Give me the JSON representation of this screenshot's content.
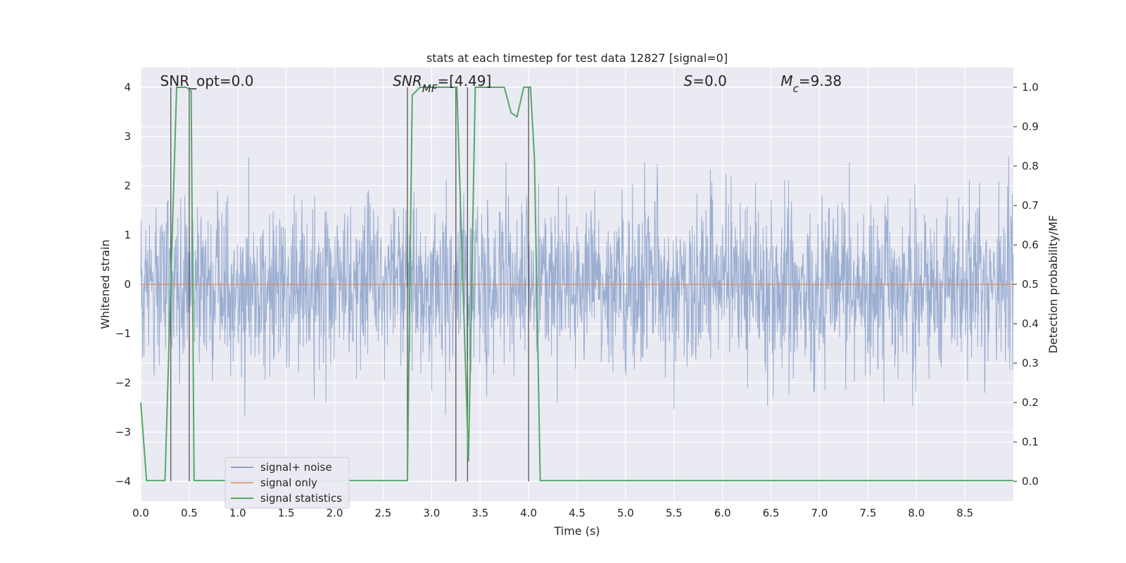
{
  "chart_data": {
    "type": "line",
    "title": "stats at each timestep for test data 12827 [signal=0]",
    "xlabel": "Time (s)",
    "ylabel": "Whitened strain",
    "y2label": "Detection probability/MF",
    "xlim": [
      0.0,
      9.0
    ],
    "ylim": [
      -4.4,
      4.4
    ],
    "y2lim": [
      -0.05,
      1.05
    ],
    "grid": true,
    "x_ticks": [
      "0.0",
      "0.5",
      "1.0",
      "1.5",
      "2.0",
      "2.5",
      "3.0",
      "3.5",
      "4.0",
      "4.5",
      "5.0",
      "5.5",
      "6.0",
      "6.5",
      "7.0",
      "7.5",
      "8.0",
      "8.5"
    ],
    "y_ticks": [
      "4",
      "3",
      "2",
      "1",
      "0",
      "−1",
      "−2",
      "−3",
      "−4"
    ],
    "y2_ticks": [
      "1.0",
      "0.9",
      "0.8",
      "0.7",
      "0.6",
      "0.5",
      "0.4",
      "0.3",
      "0.2",
      "0.1",
      "0.0"
    ],
    "annotations": [
      {
        "text": "SNR_opt=0.0",
        "x": 0.2
      },
      {
        "text": "SNR_MF=[4.49]",
        "x": 2.6
      },
      {
        "text": "S=0.0",
        "x": 5.6
      },
      {
        "text": "M_c=9.38",
        "x": 6.6
      }
    ],
    "legend": {
      "location": "lower left",
      "entries": [
        "signal+ noise",
        "signal only",
        "signal statistics"
      ]
    },
    "series": [
      {
        "name": "signal+ noise",
        "color": "#4c72b0",
        "style": "dense noise, approx. gaussian, sigma ≈ 0.85",
        "envelope": {
          "max_abs": 4.0
        }
      },
      {
        "name": "signal only",
        "color": "#dd8452",
        "x": [
          0.0,
          9.0
        ],
        "y": [
          0.0,
          0.0
        ]
      },
      {
        "name": "signal statistics",
        "color": "#55a868",
        "axis": "right",
        "x": [
          0.0,
          0.06,
          0.25,
          0.37,
          0.47,
          0.52,
          0.55,
          1.0,
          2.3,
          2.75,
          2.8,
          2.88,
          3.0,
          3.26,
          3.38,
          3.45,
          3.55,
          3.75,
          3.82,
          3.88,
          3.95,
          4.02,
          4.06,
          4.12,
          9.0
        ],
        "y": [
          0.2,
          0.002,
          0.002,
          1.0,
          1.0,
          0.99,
          0.002,
          0.002,
          0.002,
          0.002,
          0.98,
          1.0,
          1.0,
          1.0,
          0.05,
          1.0,
          1.0,
          1.0,
          0.935,
          0.925,
          1.0,
          1.0,
          0.82,
          0.002,
          0.002
        ]
      }
    ],
    "vertical_markers": {
      "color": "#555555",
      "x": [
        0.31,
        0.5,
        2.75,
        3.25,
        3.37,
        4.0
      ]
    }
  }
}
